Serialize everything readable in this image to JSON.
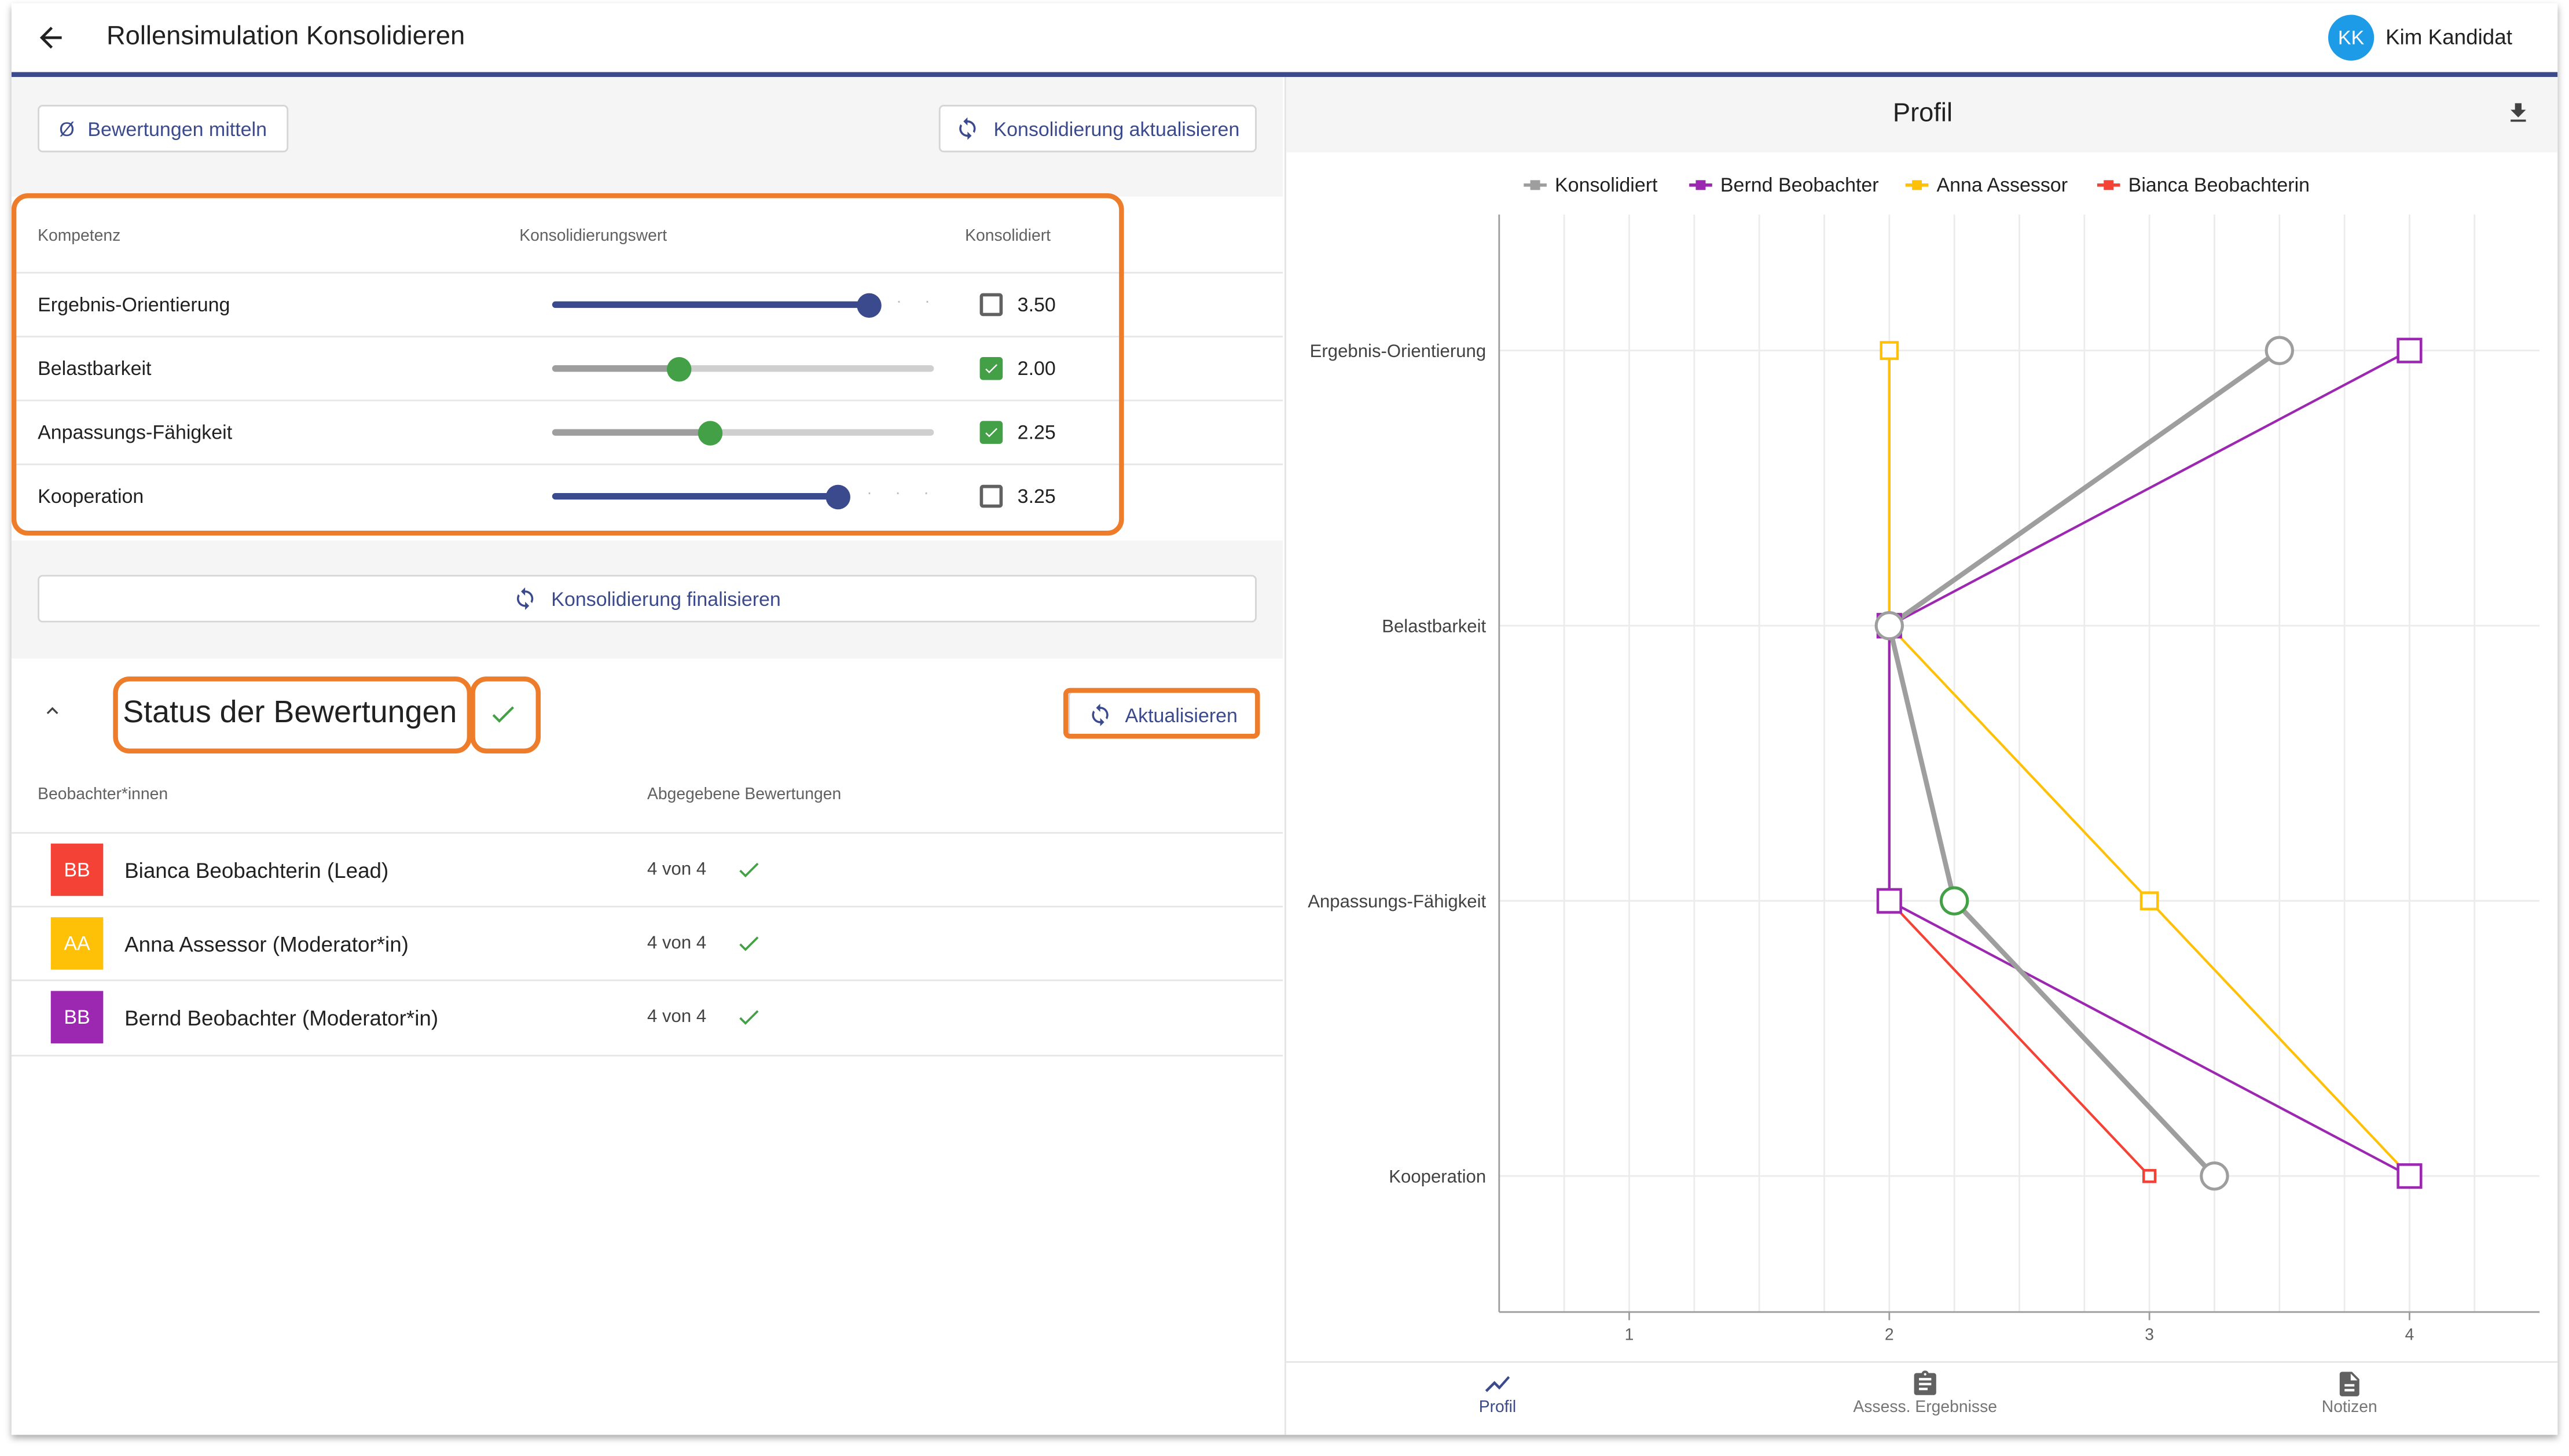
{
  "header": {
    "title": "Rollensimulation Konsolidieren",
    "user_initials": "KK",
    "user_name": "Kim Kandidat"
  },
  "toolbar": {
    "average_icon": "Ø",
    "average_label": "Bewertungen mitteln",
    "update_label": "Konsolidierung aktualisieren"
  },
  "table": {
    "col_competence": "Kompetenz",
    "col_value": "Konsolidierungswert",
    "col_consolidated": "Konsolidiert",
    "rows": [
      {
        "label": "Ergebnis-Orientierung",
        "value": "3.50",
        "consolidated": false
      },
      {
        "label": "Belastbarkeit",
        "value": "2.00",
        "consolidated": true
      },
      {
        "label": "Anpassungs-Fähigkeit",
        "value": "2.25",
        "consolidated": true
      },
      {
        "label": "Kooperation",
        "value": "3.25",
        "consolidated": false
      }
    ]
  },
  "finalize_label": "Konsolidierung finalisieren",
  "status": {
    "title": "Status der Bewertungen",
    "refresh_label": "Aktualisieren",
    "col_observers": "Beobachter*innen",
    "col_submitted": "Abgegebene Bewertungen",
    "observers": [
      {
        "initials": "BB",
        "name": "Bianca Beobachterin (Lead)",
        "count": "4 von 4",
        "color": "#f44336"
      },
      {
        "initials": "AA",
        "name": "Anna Assessor (Moderator*in)",
        "count": "4 von 4",
        "color": "#ffc107"
      },
      {
        "initials": "BB",
        "name": "Bernd Beobachter (Moderator*in)",
        "count": "4 von 4",
        "color": "#9c27b0"
      }
    ]
  },
  "profile": {
    "title": "Profil",
    "download_icon": "download-icon"
  },
  "tabs": {
    "profile": "Profil",
    "results": "Assess. Ergebnisse",
    "notes": "Notizen"
  },
  "chart_data": {
    "type": "line",
    "title": "",
    "categories": [
      "Ergebnis-Orientierung",
      "Belastbarkeit",
      "Anpassungs-Fähigkeit",
      "Kooperation"
    ],
    "x_ticks": [
      "1",
      "2",
      "3",
      "4"
    ],
    "xlim": [
      0.5,
      4.5
    ],
    "orientation": "horizontal-values",
    "grid": true,
    "legend": "top",
    "series": [
      {
        "name": "Konsolidiert",
        "values": [
          3.5,
          2.0,
          2.25,
          3.25
        ],
        "color": "#9e9e9e"
      },
      {
        "name": "Bernd Beobachter",
        "values": [
          4,
          2,
          2,
          4
        ],
        "color": "#9c27b0"
      },
      {
        "name": "Anna Assessor",
        "values": [
          2,
          2,
          3,
          4
        ],
        "color": "#ffc107"
      },
      {
        "name": "Bianca Beobachterin",
        "values": [
          2,
          2,
          2,
          3
        ],
        "color": "#f44336"
      }
    ]
  }
}
